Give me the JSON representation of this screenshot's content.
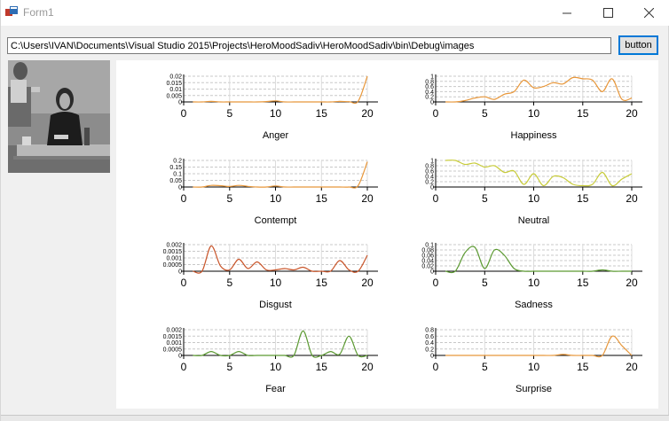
{
  "window": {
    "title": "Form1"
  },
  "toolbar": {
    "path_value": "C:\\Users\\IVAN\\Documents\\Visual Studio 2015\\Projects\\HeroMoodSadiv\\HeroMoodSadiv\\bin\\Debug\\images",
    "button_label": "button"
  },
  "colors": {
    "orange": "#e8973a",
    "yellow_green": "#c8cc3a",
    "red_brown": "#c9552a",
    "green": "#5c9a32"
  },
  "chart_data": [
    {
      "type": "line",
      "title": "Anger",
      "color": "#e8973a",
      "xlim": [
        0,
        20
      ],
      "xticks": [
        0,
        5,
        10,
        15,
        20
      ],
      "ylim": [
        0,
        0.02
      ],
      "yticks": [
        "0.02",
        "0.015",
        "0.01",
        "0.005",
        "0"
      ],
      "x": [
        1,
        2,
        3,
        4,
        5,
        6,
        7,
        8,
        9,
        10,
        11,
        12,
        13,
        14,
        15,
        16,
        17,
        18,
        19,
        20
      ],
      "values": [
        0,
        0,
        0.0004,
        0,
        0,
        0,
        0,
        0,
        0.0003,
        0.0008,
        0,
        0,
        0,
        0,
        0,
        0,
        0.0004,
        0.0002,
        0.0005,
        0.02
      ]
    },
    {
      "type": "line",
      "title": "Happiness",
      "color": "#e8973a",
      "xlim": [
        0,
        20
      ],
      "xticks": [
        0,
        5,
        10,
        15,
        20
      ],
      "ylim": [
        0,
        1
      ],
      "yticks": [
        "1",
        "0.8",
        "0.6",
        "0.4",
        "0.2",
        "0"
      ],
      "x": [
        1,
        2,
        3,
        4,
        5,
        6,
        7,
        8,
        9,
        10,
        11,
        12,
        13,
        14,
        15,
        16,
        17,
        18,
        19,
        20
      ],
      "values": [
        0,
        0,
        0.05,
        0.15,
        0.2,
        0.1,
        0.3,
        0.4,
        0.85,
        0.55,
        0.6,
        0.75,
        0.7,
        0.95,
        0.9,
        0.85,
        0.4,
        0.9,
        0.1,
        0.15
      ]
    },
    {
      "type": "line",
      "title": "Contempt",
      "color": "#e8973a",
      "xlim": [
        0,
        20
      ],
      "xticks": [
        0,
        5,
        10,
        15,
        20
      ],
      "ylim": [
        0,
        0.2
      ],
      "yticks": [
        "0.2",
        "0.15",
        "0.1",
        "0.05",
        "0"
      ],
      "x": [
        1,
        2,
        3,
        4,
        5,
        6,
        7,
        8,
        9,
        10,
        11,
        12,
        13,
        14,
        15,
        16,
        17,
        18,
        19,
        20
      ],
      "values": [
        0,
        0,
        0.012,
        0.01,
        0.004,
        0.012,
        0.005,
        0,
        0,
        0.008,
        0,
        0,
        0,
        0,
        0,
        0,
        0,
        0,
        0.01,
        0.19
      ]
    },
    {
      "type": "line",
      "title": "Neutral",
      "color": "#c8cc3a",
      "xlim": [
        0,
        20
      ],
      "xticks": [
        0,
        5,
        10,
        15,
        20
      ],
      "ylim": [
        0,
        1
      ],
      "yticks": [
        "1",
        "0.8",
        "0.6",
        "0.4",
        "0.2",
        "0"
      ],
      "x": [
        1,
        2,
        3,
        4,
        5,
        6,
        7,
        8,
        9,
        10,
        11,
        12,
        13,
        14,
        15,
        16,
        17,
        18,
        19,
        20
      ],
      "values": [
        1,
        1,
        0.85,
        0.9,
        0.75,
        0.8,
        0.55,
        0.6,
        0.1,
        0.5,
        0.05,
        0.4,
        0.35,
        0.1,
        0.05,
        0.1,
        0.55,
        0.05,
        0.3,
        0.5
      ]
    },
    {
      "type": "line",
      "title": "Disgust",
      "color": "#c9552a",
      "xlim": [
        0,
        20
      ],
      "xticks": [
        0,
        5,
        10,
        15,
        20
      ],
      "ylim": [
        0,
        0.002
      ],
      "yticks": [
        "0.002",
        "0.0015",
        "0.001",
        "0.0005",
        "0"
      ],
      "x": [
        1,
        2,
        3,
        4,
        5,
        6,
        7,
        8,
        9,
        10,
        11,
        12,
        13,
        14,
        15,
        16,
        17,
        18,
        19,
        20
      ],
      "values": [
        0,
        0,
        0.0019,
        0.0004,
        0.0001,
        0.0009,
        0.0002,
        0.0007,
        0.0001,
        0.0001,
        0.0002,
        0.0001,
        0.0003,
        0,
        0,
        0,
        0.0008,
        0.0001,
        0,
        0.0012
      ]
    },
    {
      "type": "line",
      "title": "Sadness",
      "color": "#5c9a32",
      "xlim": [
        0,
        20
      ],
      "xticks": [
        0,
        5,
        10,
        15,
        20
      ],
      "ylim": [
        0,
        0.1
      ],
      "yticks": [
        "0.1",
        "0.08",
        "0.06",
        "0.04",
        "0.02",
        "0"
      ],
      "x": [
        1,
        2,
        3,
        4,
        5,
        6,
        7,
        8,
        9,
        10,
        11,
        12,
        13,
        14,
        15,
        16,
        17,
        18,
        19,
        20
      ],
      "values": [
        0,
        0,
        0.07,
        0.09,
        0.01,
        0.08,
        0.06,
        0.01,
        0,
        0,
        0,
        0,
        0,
        0,
        0,
        0,
        0.005,
        0,
        0,
        0
      ]
    },
    {
      "type": "line",
      "title": "Fear",
      "color": "#5c9a32",
      "xlim": [
        0,
        20
      ],
      "xticks": [
        0,
        5,
        10,
        15,
        20
      ],
      "ylim": [
        0,
        0.002
      ],
      "yticks": [
        "0.002",
        "0.0015",
        "0.001",
        "0.0005",
        "0"
      ],
      "x": [
        1,
        2,
        3,
        4,
        5,
        6,
        7,
        8,
        9,
        10,
        11,
        12,
        13,
        14,
        15,
        16,
        17,
        18,
        19,
        20
      ],
      "values": [
        0,
        0,
        0.0003,
        0,
        0,
        0.0003,
        0,
        0,
        0,
        0,
        0,
        0,
        0.0019,
        0,
        0,
        0.0003,
        0.0001,
        0.0015,
        0,
        0
      ]
    },
    {
      "type": "line",
      "title": "Surprise",
      "color": "#e8973a",
      "xlim": [
        0,
        20
      ],
      "xticks": [
        0,
        5,
        10,
        15,
        20
      ],
      "ylim": [
        0,
        0.8
      ],
      "yticks": [
        "0.8",
        "0.6",
        "0.4",
        "0.2",
        "0"
      ],
      "x": [
        1,
        2,
        3,
        4,
        5,
        6,
        7,
        8,
        9,
        10,
        11,
        12,
        13,
        14,
        15,
        16,
        17,
        18,
        19,
        20
      ],
      "values": [
        0,
        0,
        0,
        0,
        0,
        0,
        0,
        0,
        0,
        0,
        0,
        0,
        0.03,
        0,
        0,
        0,
        0,
        0.6,
        0.3,
        0
      ]
    }
  ]
}
